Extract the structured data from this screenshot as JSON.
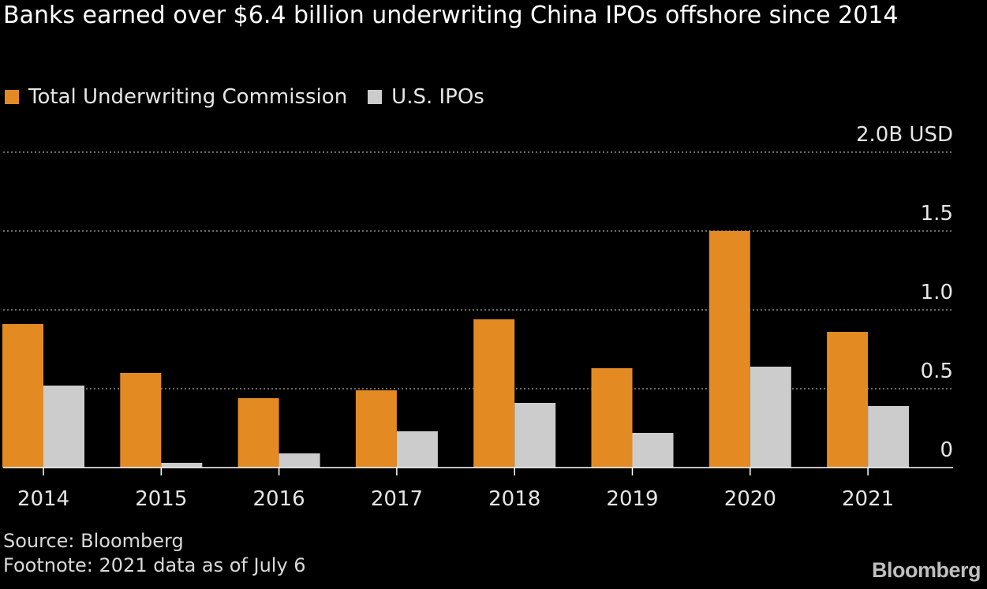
{
  "title": "Banks earned over $6.4 billion underwriting China IPOs offshore since 2014",
  "legend": [
    {
      "label": "Total Underwriting Commission",
      "color": "#e38b22"
    },
    {
      "label": "U.S. IPOs",
      "color": "#cccccc"
    }
  ],
  "chart_data": {
    "type": "bar",
    "categories": [
      "2014",
      "2015",
      "2016",
      "2017",
      "2018",
      "2019",
      "2020",
      "2021"
    ],
    "series": [
      {
        "name": "Total Underwriting Commission",
        "values": [
          0.91,
          0.6,
          0.44,
          0.49,
          0.94,
          0.63,
          1.5,
          0.86
        ],
        "color": "#e38b22"
      },
      {
        "name": "U.S. IPOs",
        "values": [
          0.52,
          0.03,
          0.09,
          0.23,
          0.41,
          0.22,
          0.64,
          0.39
        ],
        "color": "#cccccc"
      }
    ],
    "ylim": [
      0,
      2.0
    ],
    "yticks": [
      0,
      0.5,
      1.0,
      1.5,
      2.0
    ],
    "ytick_labels": [
      "0",
      "0.5",
      "1.0",
      "1.5",
      "2.0B USD"
    ],
    "ylabel": "",
    "xlabel": "",
    "grid": true,
    "legend_position": "top-left"
  },
  "footer": {
    "source": "Source: Bloomberg",
    "footnote": "Footnote: 2021 data as of July 6"
  },
  "logo": "Bloomberg"
}
